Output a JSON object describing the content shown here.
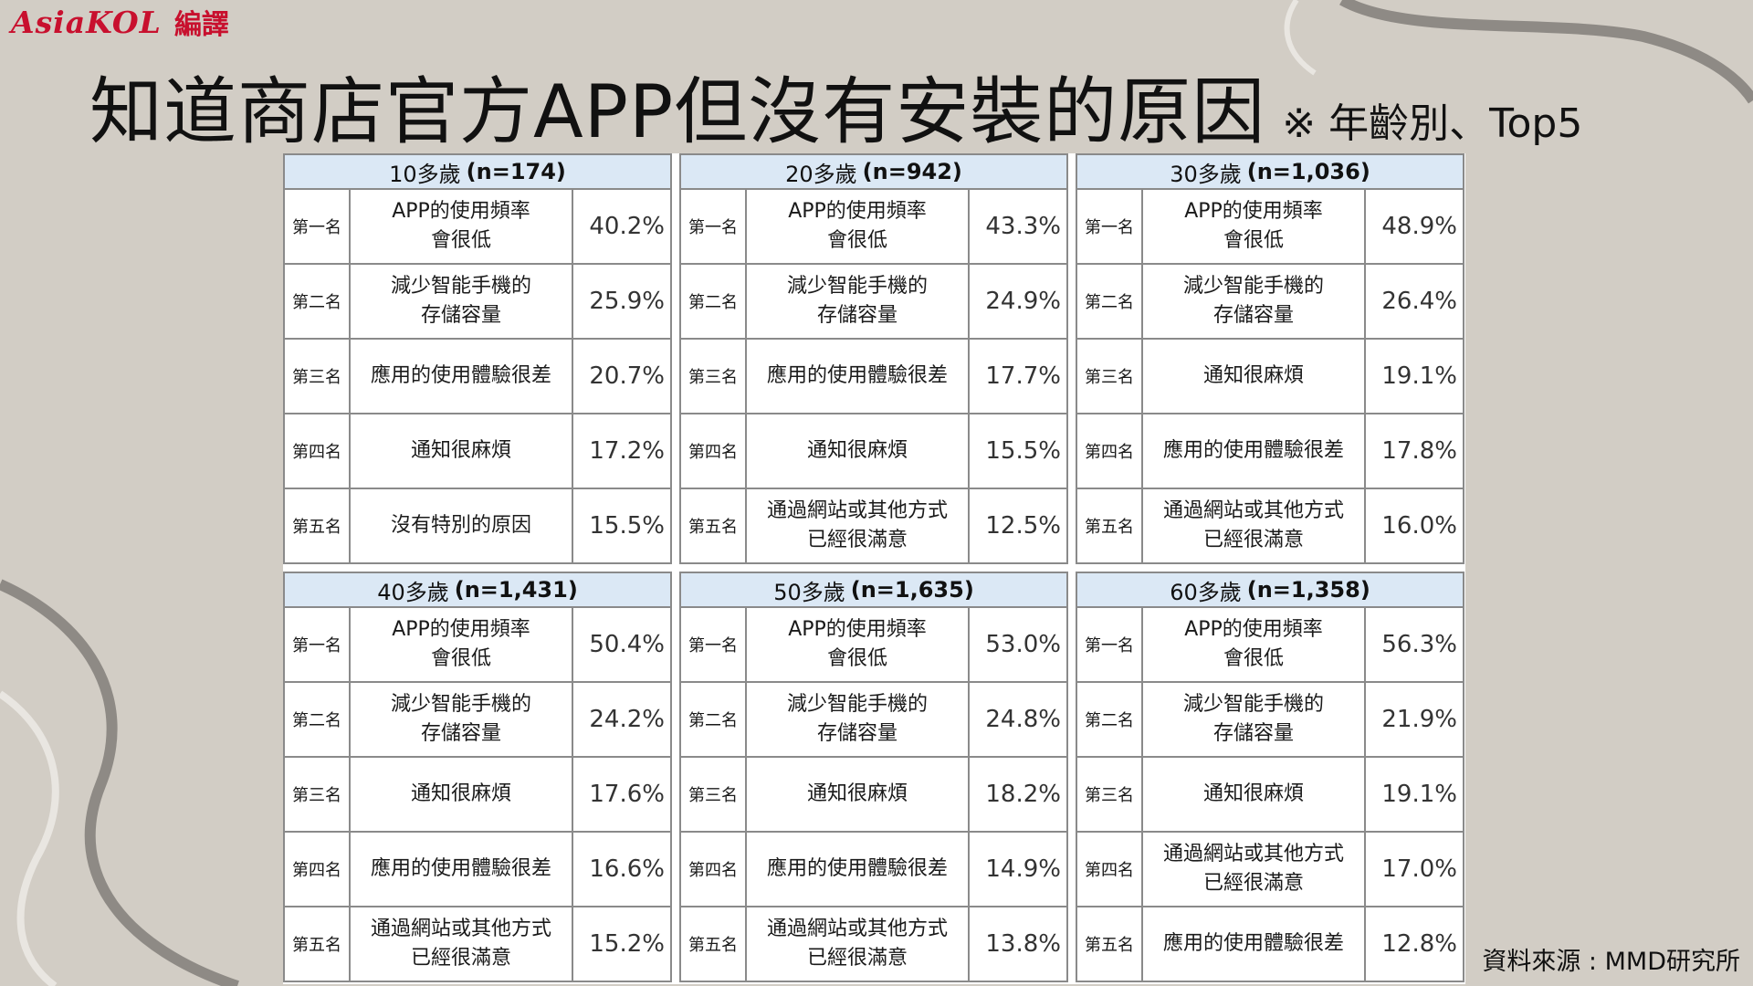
{
  "brand": {
    "logo_text": "AsiaKOL",
    "logo_sub": "編譯"
  },
  "title": "知道商店官方APP但沒有安裝的原因",
  "subtitle": "※ 年齡別、Top5",
  "source": "資料來源 : MMD研究所",
  "colors": {
    "background": "#d2cdc5",
    "header_fill": "#dbe8f5",
    "brand": "#c8102e"
  },
  "tables": [
    {
      "age": "10多歲",
      "n": "(n=174)",
      "rows": [
        {
          "rank": "第一名",
          "reason": "APP的使用頻率\n會很低",
          "pct": "40.2%"
        },
        {
          "rank": "第二名",
          "reason": "減少智能手機的\n存儲容量",
          "pct": "25.9%"
        },
        {
          "rank": "第三名",
          "reason": "應用的使用體驗很差",
          "pct": "20.7%"
        },
        {
          "rank": "第四名",
          "reason": "通知很麻煩",
          "pct": "17.2%"
        },
        {
          "rank": "第五名",
          "reason": "沒有特別的原因",
          "pct": "15.5%"
        }
      ]
    },
    {
      "age": "20多歲",
      "n": "(n=942)",
      "rows": [
        {
          "rank": "第一名",
          "reason": "APP的使用頻率\n會很低",
          "pct": "43.3%"
        },
        {
          "rank": "第二名",
          "reason": "減少智能手機的\n存儲容量",
          "pct": "24.9%"
        },
        {
          "rank": "第三名",
          "reason": "應用的使用體驗很差",
          "pct": "17.7%"
        },
        {
          "rank": "第四名",
          "reason": "通知很麻煩",
          "pct": "15.5%"
        },
        {
          "rank": "第五名",
          "reason": "通過網站或其他方式\n已經很滿意",
          "pct": "12.5%"
        }
      ]
    },
    {
      "age": "30多歲",
      "n": "(n=1,036)",
      "rows": [
        {
          "rank": "第一名",
          "reason": "APP的使用頻率\n會很低",
          "pct": "48.9%"
        },
        {
          "rank": "第二名",
          "reason": "減少智能手機的\n存儲容量",
          "pct": "26.4%"
        },
        {
          "rank": "第三名",
          "reason": "通知很麻煩",
          "pct": "19.1%"
        },
        {
          "rank": "第四名",
          "reason": "應用的使用體驗很差",
          "pct": "17.8%"
        },
        {
          "rank": "第五名",
          "reason": "通過網站或其他方式\n已經很滿意",
          "pct": "16.0%"
        }
      ]
    },
    {
      "age": "40多歲",
      "n": "(n=1,431)",
      "rows": [
        {
          "rank": "第一名",
          "reason": "APP的使用頻率\n會很低",
          "pct": "50.4%"
        },
        {
          "rank": "第二名",
          "reason": "減少智能手機的\n存儲容量",
          "pct": "24.2%"
        },
        {
          "rank": "第三名",
          "reason": "通知很麻煩",
          "pct": "17.6%"
        },
        {
          "rank": "第四名",
          "reason": "應用的使用體驗很差",
          "pct": "16.6%"
        },
        {
          "rank": "第五名",
          "reason": "通過網站或其他方式\n已經很滿意",
          "pct": "15.2%"
        }
      ]
    },
    {
      "age": "50多歲",
      "n": "(n=1,635)",
      "rows": [
        {
          "rank": "第一名",
          "reason": "APP的使用頻率\n會很低",
          "pct": "53.0%"
        },
        {
          "rank": "第二名",
          "reason": "減少智能手機的\n存儲容量",
          "pct": "24.8%"
        },
        {
          "rank": "第三名",
          "reason": "通知很麻煩",
          "pct": "18.2%"
        },
        {
          "rank": "第四名",
          "reason": "應用的使用體驗很差",
          "pct": "14.9%"
        },
        {
          "rank": "第五名",
          "reason": "通過網站或其他方式\n已經很滿意",
          "pct": "13.8%"
        }
      ]
    },
    {
      "age": "60多歲",
      "n": "(n=1,358)",
      "rows": [
        {
          "rank": "第一名",
          "reason": "APP的使用頻率\n會很低",
          "pct": "56.3%"
        },
        {
          "rank": "第二名",
          "reason": "減少智能手機的\n存儲容量",
          "pct": "21.9%"
        },
        {
          "rank": "第三名",
          "reason": "通知很麻煩",
          "pct": "19.1%"
        },
        {
          "rank": "第四名",
          "reason": "通過網站或其他方式\n已經很滿意",
          "pct": "17.0%"
        },
        {
          "rank": "第五名",
          "reason": "應用的使用體驗很差",
          "pct": "12.8%"
        }
      ]
    }
  ]
}
